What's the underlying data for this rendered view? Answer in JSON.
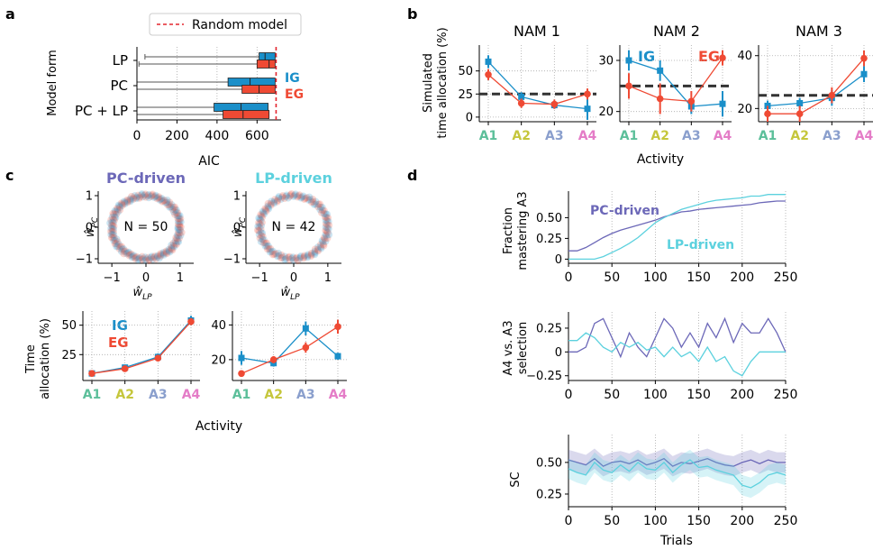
{
  "colors": {
    "ig": "#1a8fc9",
    "eg": "#ef4a34",
    "pc": "#6c68b8",
    "lp": "#5cd1de",
    "random": "#e3262f",
    "act": [
      "#5cbf9a",
      "#c5c63c",
      "#8a9fcd",
      "#e47cc7"
    ]
  },
  "labels": {
    "a": "a",
    "b": "b",
    "c": "c",
    "d": "d",
    "nam1": "NAM 1",
    "nam2": "NAM 2",
    "nam3": "NAM 3",
    "sim_y1": "Simulated",
    "sim_y2": "time allocation (%)",
    "activity": "Activity",
    "ig": "IG",
    "eg": "EG",
    "pc_driven": "PC-driven",
    "lp_driven": "LP-driven",
    "n50": "N = 50",
    "n42": "N = 42",
    "time_alloc1": "Time",
    "time_alloc2": "allocation (%)",
    "frac1": "Fraction",
    "frac2": "mastering A3",
    "a4a3_1": "A4 vs. A3",
    "a4a3_2": "selection",
    "sc": "SC",
    "trials": "Trials",
    "aic": "AIC",
    "model_form": "Model form",
    "random_model": "Random model",
    "wpc": "ŵ",
    "wpc_sub": "PC",
    "wlp": "ŵ",
    "wlp_sub": "LP"
  },
  "activities": [
    "A1",
    "A2",
    "A3",
    "A4"
  ],
  "chart_data": [
    {
      "id": "a",
      "type": "bar",
      "title": "",
      "xlabel": "AIC",
      "ylabel": "Model form",
      "categories": [
        "LP",
        "PC",
        "PC + LP"
      ],
      "xlim": [
        0,
        720
      ],
      "xticks": [
        0,
        200,
        400,
        600
      ],
      "random_model": 695,
      "series": [
        {
          "name": "IG",
          "box": [
            [
              610,
              640,
              690
            ],
            [
              455,
              565,
              690
            ],
            [
              385,
              520,
              655
            ]
          ],
          "whisker": [
            [
              40,
              700
            ],
            [
              0,
              690
            ],
            [
              0,
              655
            ]
          ]
        },
        {
          "name": "EG",
          "box": [
            [
              600,
              660,
              690
            ],
            [
              525,
              610,
              690
            ],
            [
              430,
              530,
              660
            ]
          ],
          "whisker": [
            [
              10,
              690
            ],
            [
              0,
              690
            ],
            [
              0,
              660
            ]
          ]
        }
      ]
    },
    {
      "id": "b1",
      "type": "line",
      "title": "NAM 1",
      "categories": [
        "A1",
        "A2",
        "A3",
        "A4"
      ],
      "ylim": [
        -5,
        78
      ],
      "yticks": [
        0,
        25,
        50
      ],
      "random": 25,
      "series": [
        {
          "name": "IG",
          "values": [
            60,
            22,
            13,
            9
          ],
          "err": [
            7,
            5,
            4,
            12
          ]
        },
        {
          "name": "EG",
          "values": [
            46,
            15,
            14,
            25
          ],
          "err": [
            6,
            5,
            5,
            6
          ]
        }
      ]
    },
    {
      "id": "b2",
      "type": "line",
      "title": "NAM 2",
      "categories": [
        "A1",
        "A2",
        "A3",
        "A4"
      ],
      "ylim": [
        18,
        33
      ],
      "yticks": [
        20,
        30
      ],
      "random": 25,
      "series": [
        {
          "name": "IG",
          "values": [
            30,
            28,
            21,
            21.5
          ],
          "err": [
            2,
            2,
            1.5,
            2.5
          ]
        },
        {
          "name": "EG",
          "values": [
            25,
            22.5,
            22,
            30.5
          ],
          "err": [
            2.5,
            3,
            2,
            1.5
          ]
        }
      ]
    },
    {
      "id": "b3",
      "type": "line",
      "title": "NAM 3",
      "categories": [
        "A1",
        "A2",
        "A3",
        "A4"
      ],
      "ylim": [
        15,
        44
      ],
      "yticks": [
        20,
        40
      ],
      "random": 25,
      "series": [
        {
          "name": "IG",
          "values": [
            21,
            22,
            24,
            33
          ],
          "err": [
            2,
            2,
            3,
            3
          ]
        },
        {
          "name": "EG",
          "values": [
            18,
            18,
            25,
            39
          ],
          "err": [
            3,
            3,
            3,
            3
          ]
        }
      ]
    },
    {
      "id": "c_pc_ring",
      "type": "scatter",
      "title": "PC-driven",
      "xlim": [
        -1.4,
        1.4
      ],
      "ylim": [
        -1.2,
        1.2
      ],
      "xticks": [
        -1,
        0,
        1
      ],
      "yticks": [
        -1,
        0,
        1
      ],
      "n": 50
    },
    {
      "id": "c_lp_ring",
      "type": "scatter",
      "title": "LP-driven",
      "xlim": [
        -1.4,
        1.4
      ],
      "ylim": [
        -1.2,
        1.2
      ],
      "xticks": [
        -1,
        0,
        1
      ],
      "yticks": [
        -1,
        0,
        1
      ],
      "n": 42
    },
    {
      "id": "c_pc_alloc",
      "type": "line",
      "categories": [
        "A1",
        "A2",
        "A3",
        "A4"
      ],
      "ylim": [
        3,
        62
      ],
      "yticks": [
        25,
        50
      ],
      "series": [
        {
          "name": "IG",
          "values": [
            9,
            14,
            23,
            54
          ],
          "err": [
            1,
            2,
            3,
            4
          ]
        },
        {
          "name": "EG",
          "values": [
            9,
            13,
            22,
            53
          ],
          "err": [
            1,
            1,
            2,
            3
          ]
        }
      ]
    },
    {
      "id": "c_lp_alloc",
      "type": "line",
      "categories": [
        "A1",
        "A2",
        "A3",
        "A4"
      ],
      "ylim": [
        8,
        48
      ],
      "yticks": [
        20,
        40
      ],
      "series": [
        {
          "name": "IG",
          "values": [
            21,
            18,
            38,
            22
          ],
          "err": [
            4,
            2,
            4,
            2
          ]
        },
        {
          "name": "EG",
          "values": [
            12,
            20,
            27,
            39
          ],
          "err": [
            1,
            2,
            3,
            4
          ]
        }
      ]
    },
    {
      "id": "d1",
      "type": "line",
      "xlabel": "",
      "ylabel": "Fraction mastering A3",
      "xlim": [
        0,
        250
      ],
      "ylim": [
        -0.05,
        0.82
      ],
      "xticks": [
        0,
        50,
        100,
        150,
        200,
        250
      ],
      "yticks": [
        0.0,
        0.25,
        0.5
      ],
      "x": [
        0,
        10,
        20,
        30,
        40,
        50,
        60,
        70,
        80,
        90,
        100,
        110,
        120,
        130,
        140,
        150,
        160,
        170,
        180,
        190,
        200,
        210,
        220,
        230,
        240,
        250
      ],
      "series": [
        {
          "name": "PC-driven",
          "values": [
            0.1,
            0.1,
            0.14,
            0.2,
            0.26,
            0.31,
            0.35,
            0.38,
            0.41,
            0.44,
            0.47,
            0.51,
            0.54,
            0.57,
            0.58,
            0.6,
            0.61,
            0.62,
            0.63,
            0.64,
            0.65,
            0.66,
            0.68,
            0.69,
            0.7,
            0.7
          ]
        },
        {
          "name": "LP-driven",
          "values": [
            0.0,
            0.0,
            0.0,
            0.0,
            0.03,
            0.08,
            0.13,
            0.19,
            0.26,
            0.35,
            0.44,
            0.5,
            0.55,
            0.6,
            0.63,
            0.66,
            0.69,
            0.71,
            0.72,
            0.73,
            0.74,
            0.76,
            0.76,
            0.78,
            0.78,
            0.78
          ]
        }
      ]
    },
    {
      "id": "d2",
      "type": "line",
      "ylabel": "A4 vs. A3 selection",
      "xlim": [
        0,
        250
      ],
      "ylim": [
        -0.3,
        0.42
      ],
      "xticks": [
        0,
        50,
        100,
        150,
        200,
        250
      ],
      "yticks": [
        -0.25,
        0.0,
        0.25
      ],
      "x": [
        0,
        10,
        20,
        30,
        40,
        50,
        60,
        70,
        80,
        90,
        100,
        110,
        120,
        130,
        140,
        150,
        160,
        170,
        180,
        190,
        200,
        210,
        220,
        230,
        240,
        250
      ],
      "series": [
        {
          "name": "PC-driven",
          "values": [
            0.0,
            0.0,
            0.05,
            0.3,
            0.35,
            0.15,
            -0.05,
            0.2,
            0.05,
            -0.05,
            0.15,
            0.35,
            0.25,
            0.05,
            0.2,
            0.05,
            0.3,
            0.15,
            0.35,
            0.1,
            0.3,
            0.2,
            0.2,
            0.35,
            0.2,
            0.0
          ]
        },
        {
          "name": "LP-driven",
          "values": [
            0.12,
            0.12,
            0.2,
            0.15,
            0.05,
            0.0,
            0.1,
            0.05,
            0.1,
            0.02,
            0.05,
            -0.05,
            0.05,
            -0.05,
            0.0,
            -0.1,
            0.05,
            -0.1,
            -0.05,
            -0.2,
            -0.25,
            -0.1,
            0.0,
            0.0,
            0.0,
            0.0
          ]
        }
      ]
    },
    {
      "id": "d3",
      "type": "area",
      "xlabel": "Trials",
      "ylabel": "SC",
      "xlim": [
        0,
        250
      ],
      "ylim": [
        0.15,
        0.72
      ],
      "xticks": [
        0,
        50,
        100,
        150,
        200,
        250
      ],
      "yticks": [
        0.25,
        0.5
      ],
      "x": [
        0,
        10,
        20,
        30,
        40,
        50,
        60,
        70,
        80,
        90,
        100,
        110,
        120,
        130,
        140,
        150,
        160,
        170,
        180,
        190,
        200,
        210,
        220,
        230,
        240,
        250
      ],
      "series": [
        {
          "name": "PC-driven",
          "values": [
            0.52,
            0.5,
            0.48,
            0.53,
            0.47,
            0.5,
            0.51,
            0.49,
            0.52,
            0.48,
            0.5,
            0.53,
            0.47,
            0.5,
            0.49,
            0.51,
            0.53,
            0.5,
            0.48,
            0.47,
            0.5,
            0.52,
            0.49,
            0.52,
            0.5,
            0.5
          ],
          "band": 0.08
        },
        {
          "name": "LP-driven",
          "values": [
            0.45,
            0.42,
            0.4,
            0.5,
            0.44,
            0.42,
            0.48,
            0.43,
            0.5,
            0.45,
            0.44,
            0.5,
            0.42,
            0.48,
            0.52,
            0.46,
            0.47,
            0.44,
            0.42,
            0.4,
            0.32,
            0.3,
            0.34,
            0.4,
            0.42,
            0.4
          ],
          "band": 0.08
        }
      ]
    }
  ]
}
